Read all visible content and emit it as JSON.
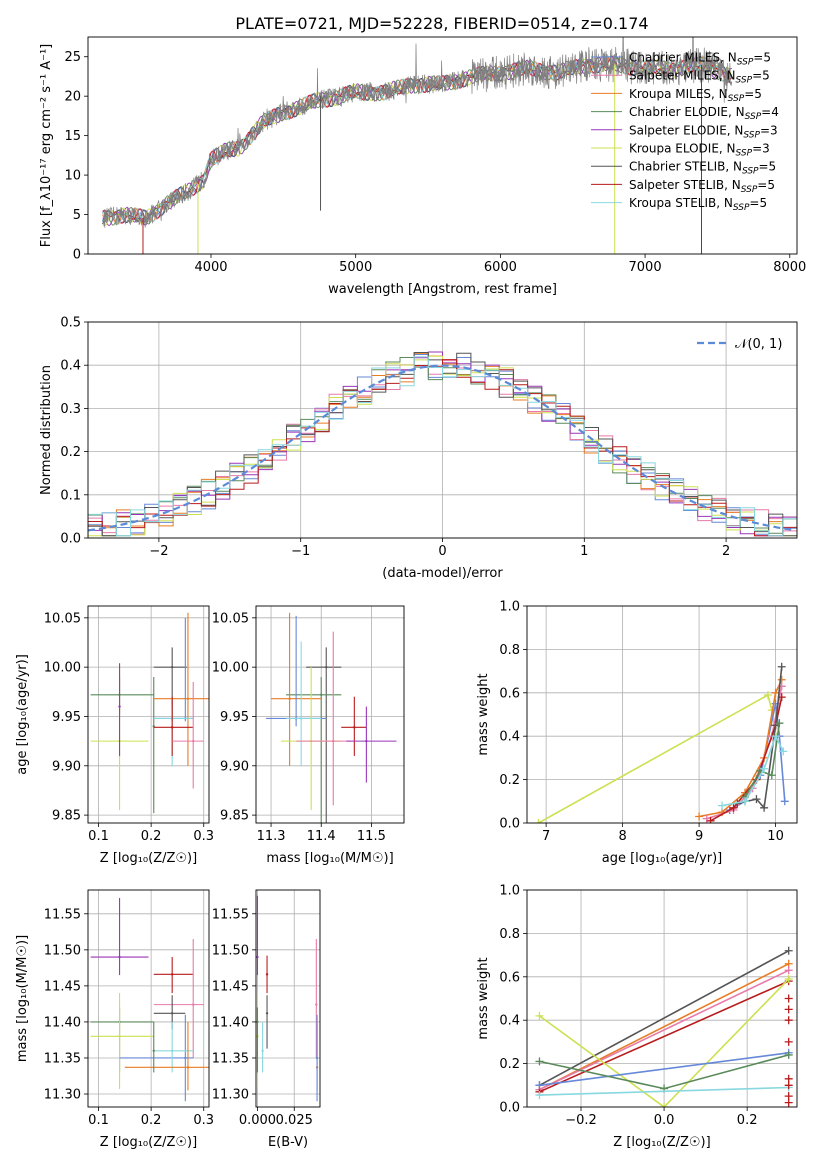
{
  "figure_title": "PLATE=0721, MJD=52228, FIBERID=0514, z=0.174",
  "colors": {
    "chabrier_miles": "#6688d8",
    "salpeter_miles": "#e87aa8",
    "kroupa_miles": "#e87c24",
    "chabrier_elodie": "#5a8a5a",
    "salpeter_elodie": "#9a35b8",
    "kroupa_elodie": "#cde050",
    "chabrier_stelib": "#555555",
    "salpeter_stelib": "#b81c1c",
    "kroupa_stelib": "#88d8e0",
    "data_gray": "#808080",
    "normal_curve": "#5b8ad8",
    "grid": "#b0b0b0"
  },
  "chart_data": [
    {
      "id": "spectrum",
      "type": "line",
      "title": "PLATE=0721, MJD=52228, FIBERID=0514, z=0.174",
      "xlabel": "wavelength [Angstrom, rest frame]",
      "ylabel": "Flux [f_λ10⁻¹⁷ erg cm⁻² s⁻¹ A⁻¹]",
      "xlim": [
        3150,
        8050
      ],
      "ylim": [
        0,
        27.5
      ],
      "xticks": [
        4000,
        5000,
        6000,
        7000,
        8000
      ],
      "yticks": [
        0,
        5,
        10,
        15,
        20,
        25
      ],
      "grid": false,
      "legend_position": "top-right",
      "series": [
        {
          "name": "Chabrier MILES, N_SSP=5",
          "key": "chabrier_miles"
        },
        {
          "name": "Salpeter MILES, N_SSP=5",
          "key": "salpeter_miles"
        },
        {
          "name": "Kroupa MILES, N_SSP=5",
          "key": "kroupa_miles"
        },
        {
          "name": "Chabrier ELODIE, N_SSP=4",
          "key": "chabrier_elodie"
        },
        {
          "name": "Salpeter ELODIE, N_SSP=3",
          "key": "salpeter_elodie"
        },
        {
          "name": "Kroupa ELODIE, N_SSP=3",
          "key": "kroupa_elodie"
        },
        {
          "name": "Chabrier STELIB, N_SSP=5",
          "key": "chabrier_stelib"
        },
        {
          "name": "Salpeter STELIB, N_SSP=5",
          "key": "salpeter_stelib"
        },
        {
          "name": "Kroupa STELIB, N_SSP=5",
          "key": "kroupa_stelib"
        }
      ],
      "continuum": {
        "x": [
          3250,
          3400,
          3550,
          3700,
          3850,
          3950,
          4000,
          4100,
          4200,
          4350,
          4500,
          4600,
          4750,
          4900,
          5000,
          5200,
          5400,
          5600,
          5800,
          6000,
          6200,
          6400,
          6600,
          6800,
          7000,
          7200,
          7400,
          7600
        ],
        "y": [
          4.5,
          5.0,
          4.5,
          6.5,
          8.0,
          9.5,
          12.0,
          13.0,
          13.5,
          16.5,
          18.0,
          18.5,
          19.5,
          20.0,
          20.5,
          20.5,
          21.5,
          21.5,
          22.5,
          23.0,
          23.5,
          23.0,
          24.0,
          24.0,
          23.5,
          23.5,
          24.0,
          22.5
        ]
      },
      "model_drops": [
        {
          "key": "salpeter_stelib",
          "x": 3530
        },
        {
          "key": "kroupa_elodie",
          "x": 3910
        },
        {
          "key": "kroupa_elodie",
          "x": 6790
        },
        {
          "key": "salpeter_stelib",
          "x": 7390
        }
      ]
    },
    {
      "id": "residuals",
      "type": "histogram",
      "xlabel": "(data-model)/error",
      "ylabel": "Normed distribution",
      "xlim": [
        -2.5,
        2.5
      ],
      "ylim": [
        0,
        0.5
      ],
      "xticks": [
        -2,
        -1,
        0,
        1,
        2
      ],
      "yticks": [
        0.0,
        0.1,
        0.2,
        0.3,
        0.4,
        0.5
      ],
      "grid": true,
      "legend_position": "top-right",
      "legend": "𝒩(0, 1)",
      "bin_width": 0.1
    },
    {
      "id": "age_vs_Z",
      "type": "scatter",
      "xlabel": "Z [log₁₀(Z/Z☉)]",
      "ylabel": "age  [log₁₀(age/yr)]",
      "xlim": [
        0.08,
        0.31
      ],
      "ylim": [
        9.842,
        10.062
      ],
      "xticks": [
        0.1,
        0.2,
        0.3
      ],
      "yticks": [
        9.85,
        9.9,
        9.95,
        10.0,
        10.05
      ],
      "grid": true,
      "points": [
        {
          "key": "chabrier_elodie",
          "x": 0.14,
          "xerr": [
            0.085,
            0.205
          ],
          "y": 9.972,
          "yerr": [
            9.952,
            9.99
          ]
        },
        {
          "key": "kroupa_elodie",
          "x": 0.14,
          "xerr": [
            0.085,
            0.195
          ],
          "y": 9.925,
          "yerr": [
            9.855,
            10.0
          ]
        },
        {
          "key": "salpeter_elodie",
          "x": 0.14,
          "xerr": [
            0.14,
            0.14
          ],
          "y": 9.96,
          "yerr": [
            9.91,
            10.004
          ]
        },
        {
          "key": "chabrier_stelib",
          "x": 0.24,
          "xerr": [
            0.205,
            0.268
          ],
          "y": 10.0,
          "yerr": [
            9.945,
            10.02
          ]
        },
        {
          "key": "chabrier_elodie",
          "x": 0.205,
          "xerr": [
            0.205,
            0.205
          ],
          "y": 9.94,
          "yerr": [
            9.852,
            9.99
          ]
        },
        {
          "key": "kroupa_miles",
          "x": 0.27,
          "xerr": [
            0.205,
            0.31
          ],
          "y": 9.968,
          "yerr": [
            9.9,
            10.055
          ]
        },
        {
          "key": "chabrier_miles",
          "x": 0.265,
          "xerr": [
            0.205,
            0.28
          ],
          "y": 9.948,
          "yerr": [
            9.945,
            10.05
          ]
        },
        {
          "key": "kroupa_stelib",
          "x": 0.24,
          "xerr": [
            0.205,
            0.28
          ],
          "y": 9.948,
          "yerr": [
            9.9,
            9.96
          ]
        },
        {
          "key": "salpeter_stelib",
          "x": 0.24,
          "xerr": [
            0.205,
            0.28
          ],
          "y": 9.939,
          "yerr": [
            9.91,
            9.97
          ]
        },
        {
          "key": "salpeter_miles",
          "x": 0.28,
          "xerr": [
            0.24,
            0.3
          ],
          "y": 9.925,
          "yerr": [
            9.877,
            9.985
          ]
        }
      ]
    },
    {
      "id": "age_vs_mass",
      "type": "scatter",
      "xlabel": "mass [log₁₀(M/M☉)]",
      "xlim": [
        11.27,
        11.565
      ],
      "ylim": [
        9.842,
        10.062
      ],
      "xticks": [
        11.3,
        11.4,
        11.5
      ],
      "yticks": [
        9.85,
        9.9,
        9.95,
        10.0,
        10.05
      ],
      "grid": true,
      "points": [
        {
          "key": "chabrier_stelib",
          "x": 11.41,
          "xerr": [
            11.37,
            11.44
          ],
          "y": 10.0,
          "yerr": [
            9.84,
            10.02
          ]
        },
        {
          "key": "chabrier_elodie",
          "x": 11.4,
          "xerr": [
            11.33,
            11.44
          ],
          "y": 9.972,
          "yerr": [
            9.84,
            9.99
          ]
        },
        {
          "key": "kroupa_miles",
          "x": 11.337,
          "xerr": [
            11.3,
            11.4
          ],
          "y": 9.968,
          "yerr": [
            9.9,
            10.055
          ]
        },
        {
          "key": "chabrier_miles",
          "x": 11.35,
          "xerr": [
            11.29,
            11.41
          ],
          "y": 9.948,
          "yerr": [
            9.94,
            10.052
          ]
        },
        {
          "key": "kroupa_stelib",
          "x": 11.36,
          "xerr": [
            11.33,
            11.4
          ],
          "y": 9.948,
          "yerr": [
            9.9,
            10.026
          ]
        },
        {
          "key": "kroupa_elodie",
          "x": 11.38,
          "xerr": [
            11.32,
            11.44
          ],
          "y": 9.925,
          "yerr": [
            9.855,
            10.0
          ]
        },
        {
          "key": "salpeter_stelib",
          "x": 11.466,
          "xerr": [
            11.44,
            11.49
          ],
          "y": 9.939,
          "yerr": [
            9.91,
            9.97
          ]
        },
        {
          "key": "salpeter_miles",
          "x": 11.424,
          "xerr": [
            11.35,
            11.46
          ],
          "y": 9.925,
          "yerr": [
            9.86,
            10.036
          ]
        },
        {
          "key": "salpeter_elodie",
          "x": 11.49,
          "xerr": [
            11.45,
            11.55
          ],
          "y": 9.925,
          "yerr": [
            9.883,
            9.96
          ]
        }
      ]
    },
    {
      "id": "weight_vs_age",
      "type": "line",
      "xlabel": "age  [log₁₀(age/yr)]",
      "ylabel": "mass weight",
      "xlim": [
        6.75,
        10.28
      ],
      "ylim": [
        0,
        1.0
      ],
      "xticks": [
        7,
        8,
        9,
        10
      ],
      "yticks": [
        0.0,
        0.2,
        0.4,
        0.6,
        0.8,
        1.0
      ],
      "grid": true,
      "series": [
        {
          "key": "kroupa_elodie",
          "x": [
            6.9,
            9.9,
            9.95,
            10.0
          ],
          "y": [
            0.0,
            0.59,
            0.52,
            0.41
          ]
        },
        {
          "key": "chabrier_miles",
          "x": [
            9.4,
            9.6,
            9.8,
            10.0,
            10.05,
            10.12
          ],
          "y": [
            0.06,
            0.1,
            0.22,
            0.55,
            0.4,
            0.1
          ]
        },
        {
          "key": "kroupa_miles",
          "x": [
            9.0,
            9.3,
            9.6,
            9.85,
            10.0,
            10.08
          ],
          "y": [
            0.03,
            0.05,
            0.14,
            0.3,
            0.6,
            0.66
          ]
        },
        {
          "key": "salpeter_miles",
          "x": [
            9.1,
            9.45,
            9.7,
            9.95,
            10.08
          ],
          "y": [
            0.02,
            0.06,
            0.16,
            0.4,
            0.63
          ]
        },
        {
          "key": "salpeter_stelib",
          "x": [
            9.15,
            9.45,
            9.75,
            10.0,
            10.08
          ],
          "y": [
            0.01,
            0.07,
            0.2,
            0.45,
            0.58
          ]
        },
        {
          "key": "chabrier_stelib",
          "x": [
            9.5,
            9.75,
            9.85,
            10.0,
            10.08
          ],
          "y": [
            0.09,
            0.11,
            0.07,
            0.45,
            0.72
          ]
        },
        {
          "key": "chabrier_elodie",
          "x": [
            9.6,
            9.8,
            9.95,
            10.05
          ],
          "y": [
            0.12,
            0.24,
            0.22,
            0.46
          ]
        },
        {
          "key": "kroupa_stelib",
          "x": [
            9.3,
            9.6,
            9.85,
            10.0,
            10.1
          ],
          "y": [
            0.08,
            0.1,
            0.25,
            0.4,
            0.33
          ]
        }
      ]
    },
    {
      "id": "mass_vs_Z",
      "type": "scatter",
      "xlabel": "Z [log₁₀(Z/Z☉)]",
      "ylabel": "mass [log₁₀(M/M☉)]",
      "xlim": [
        0.08,
        0.31
      ],
      "ylim": [
        11.282,
        11.583
      ],
      "xticks": [
        0.1,
        0.2,
        0.3
      ],
      "yticks": [
        11.3,
        11.35,
        11.4,
        11.45,
        11.5,
        11.55
      ],
      "grid": true,
      "points": [
        {
          "key": "salpeter_elodie",
          "x": 0.14,
          "xerr": [
            0.085,
            0.195
          ],
          "y": 11.49,
          "yerr": [
            11.465,
            11.572
          ]
        },
        {
          "key": "salpeter_stelib",
          "x": 0.24,
          "xerr": [
            0.205,
            0.28
          ],
          "y": 11.466,
          "yerr": [
            11.44,
            11.49
          ]
        },
        {
          "key": "salpeter_miles",
          "x": 0.28,
          "xerr": [
            0.205,
            0.3
          ],
          "y": 11.424,
          "yerr": [
            11.35,
            11.515
          ]
        },
        {
          "key": "chabrier_stelib",
          "x": 0.24,
          "xerr": [
            0.205,
            0.265
          ],
          "y": 11.412,
          "yerr": [
            11.39,
            11.437
          ]
        },
        {
          "key": "chabrier_elodie",
          "x": 0.14,
          "xerr": [
            0.085,
            0.205
          ],
          "y": 11.4,
          "yerr": [
            11.33,
            11.42
          ]
        },
        {
          "key": "kroupa_elodie",
          "x": 0.14,
          "xerr": [
            0.085,
            0.205
          ],
          "y": 11.38,
          "yerr": [
            11.307,
            11.44
          ]
        },
        {
          "key": "chabrier_miles",
          "x": 0.265,
          "xerr": [
            0.14,
            0.28
          ],
          "y": 11.35,
          "yerr": [
            11.29,
            11.41
          ]
        },
        {
          "key": "kroupa_stelib",
          "x": 0.24,
          "xerr": [
            0.205,
            0.28
          ],
          "y": 11.36,
          "yerr": [
            11.33,
            11.4
          ]
        },
        {
          "key": "kroupa_miles",
          "x": 0.27,
          "xerr": [
            0.15,
            0.31
          ],
          "y": 11.337,
          "yerr": [
            11.305,
            11.4
          ]
        },
        {
          "key": "chabrier_elodie",
          "x": 0.205,
          "xerr": [
            0.205,
            0.205
          ],
          "y": 11.36,
          "yerr": [
            11.33,
            11.4
          ]
        }
      ]
    },
    {
      "id": "mass_vs_ebv",
      "type": "scatter",
      "xlabel": "E(B-V)",
      "xlim": [
        -0.001,
        0.0425
      ],
      "ylim": [
        11.282,
        11.583
      ],
      "xticks": [
        0.0,
        0.025
      ],
      "xticklabels": [
        "0.000",
        "0.025"
      ],
      "yticks": [
        11.3,
        11.35,
        11.4,
        11.45,
        11.5,
        11.55
      ],
      "grid": true,
      "points": [
        {
          "key": "salpeter_elodie",
          "x": 0.0,
          "y": 11.49,
          "yerr": [
            11.465,
            11.575
          ]
        },
        {
          "key": "kroupa_elodie",
          "x": 0.0,
          "y": 11.38,
          "yerr": [
            11.307,
            11.44
          ]
        },
        {
          "key": "chabrier_elodie",
          "x": 0.0,
          "y": 11.4,
          "yerr": [
            11.33,
            11.42
          ]
        },
        {
          "key": "kroupa_stelib",
          "x": 0.0035,
          "y": 11.36,
          "yerr": [
            11.33,
            11.4
          ]
        },
        {
          "key": "chabrier_stelib",
          "x": 0.0065,
          "y": 11.412,
          "yerr": [
            11.363,
            11.437
          ]
        },
        {
          "key": "salpeter_stelib",
          "x": 0.0065,
          "y": 11.466,
          "yerr": [
            11.44,
            11.492
          ]
        },
        {
          "key": "salpeter_miles",
          "x": 0.04,
          "y": 11.424,
          "yerr": [
            11.35,
            11.515
          ]
        },
        {
          "key": "kroupa_miles",
          "x": 0.0405,
          "y": 11.337,
          "yerr": [
            11.305,
            11.4
          ]
        },
        {
          "key": "chabrier_miles",
          "x": 0.0405,
          "y": 11.35,
          "yerr": [
            11.29,
            11.41
          ]
        }
      ]
    },
    {
      "id": "weight_vs_Z",
      "type": "line",
      "xlabel": "Z [log₁₀(Z/Z☉)]",
      "ylabel": "mass weight",
      "xlim": [
        -0.33,
        0.32
      ],
      "ylim": [
        0,
        1.0
      ],
      "xticks": [
        -0.2,
        0.0,
        0.2
      ],
      "yticks": [
        0.0,
        0.2,
        0.4,
        0.6,
        0.8,
        1.0
      ],
      "grid": true,
      "series": [
        {
          "key": "chabrier_stelib",
          "x": [
            -0.3,
            0.3
          ],
          "y": [
            0.1,
            0.72
          ]
        },
        {
          "key": "kroupa_miles",
          "x": [
            -0.3,
            0.3
          ],
          "y": [
            0.08,
            0.66
          ]
        },
        {
          "key": "salpeter_miles",
          "x": [
            -0.3,
            0.3
          ],
          "y": [
            0.08,
            0.63
          ]
        },
        {
          "key": "salpeter_stelib",
          "x": [
            -0.3,
            0.3
          ],
          "y": [
            0.07,
            0.58
          ]
        },
        {
          "key": "kroupa_elodie",
          "x": [
            -0.3,
            0.0,
            0.3
          ],
          "y": [
            0.42,
            0.0,
            0.59
          ]
        },
        {
          "key": "chabrier_miles",
          "x": [
            -0.3,
            0.3
          ],
          "y": [
            0.1,
            0.25
          ]
        },
        {
          "key": "chabrier_elodie",
          "x": [
            -0.3,
            0.0,
            0.3
          ],
          "y": [
            0.21,
            0.085,
            0.24
          ]
        },
        {
          "key": "kroupa_stelib",
          "x": [
            -0.3,
            0.3
          ],
          "y": [
            0.055,
            0.09
          ]
        }
      ],
      "end_markers_x": 0.3,
      "end_markers_y": [
        0.02,
        0.05,
        0.1,
        0.13,
        0.3,
        0.4,
        0.45,
        0.5
      ]
    }
  ]
}
